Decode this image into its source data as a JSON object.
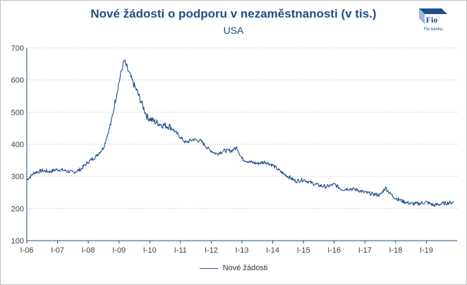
{
  "title": "Nové žádosti o podporu v nezaměstnanosti (v tis.)",
  "subtitle": "USA",
  "logo": {
    "text": "Fio",
    "caption": "Fio banka"
  },
  "colors": {
    "line": "#1f4e8c",
    "title": "#1f4e8c",
    "grid": "#bfbfbf",
    "axis": "#1f4e8c"
  },
  "chart_data": {
    "type": "line",
    "title": "Nové žádosti o podporu v nezaměstnanosti (v tis.)",
    "subtitle": "USA",
    "x_axis": {
      "type": "date",
      "range": [
        "2006-01",
        "2019-12"
      ]
    },
    "xticks": [
      "I-06",
      "I-07",
      "I-08",
      "I-09",
      "I-10",
      "I-11",
      "I-12",
      "I-13",
      "I-14",
      "I-15",
      "I-16",
      "I-17",
      "I-18",
      "I-19"
    ],
    "ylim": [
      100,
      700
    ],
    "yticks": [
      100,
      200,
      300,
      400,
      500,
      600,
      700
    ],
    "grid": {
      "horizontal": true,
      "style": "dotted"
    },
    "legend": {
      "position": "bottom"
    },
    "series": [
      {
        "name": "Nové žádosti",
        "points": [
          [
            "2006-01",
            290
          ],
          [
            "2006-04",
            312
          ],
          [
            "2006-07",
            318
          ],
          [
            "2006-10",
            315
          ],
          [
            "2007-01",
            322
          ],
          [
            "2007-04",
            318
          ],
          [
            "2007-07",
            312
          ],
          [
            "2007-10",
            322
          ],
          [
            "2008-01",
            345
          ],
          [
            "2008-04",
            362
          ],
          [
            "2008-07",
            390
          ],
          [
            "2008-10",
            470
          ],
          [
            "2008-12",
            555
          ],
          [
            "2009-02",
            630
          ],
          [
            "2009-03",
            660
          ],
          [
            "2009-04",
            640
          ],
          [
            "2009-06",
            600
          ],
          [
            "2009-08",
            565
          ],
          [
            "2009-10",
            525
          ],
          [
            "2009-12",
            485
          ],
          [
            "2010-03",
            470
          ],
          [
            "2010-06",
            460
          ],
          [
            "2010-09",
            455
          ],
          [
            "2010-12",
            430
          ],
          [
            "2011-03",
            405
          ],
          [
            "2011-06",
            415
          ],
          [
            "2011-09",
            410
          ],
          [
            "2011-12",
            385
          ],
          [
            "2012-03",
            370
          ],
          [
            "2012-06",
            380
          ],
          [
            "2012-09",
            380
          ],
          [
            "2012-11",
            390
          ],
          [
            "2013-01",
            355
          ],
          [
            "2013-04",
            345
          ],
          [
            "2013-07",
            340
          ],
          [
            "2013-10",
            345
          ],
          [
            "2014-01",
            335
          ],
          [
            "2014-04",
            315
          ],
          [
            "2014-07",
            300
          ],
          [
            "2014-10",
            285
          ],
          [
            "2015-01",
            290
          ],
          [
            "2015-04",
            280
          ],
          [
            "2015-07",
            272
          ],
          [
            "2015-10",
            268
          ],
          [
            "2016-01",
            275
          ],
          [
            "2016-04",
            260
          ],
          [
            "2016-07",
            262
          ],
          [
            "2016-10",
            258
          ],
          [
            "2017-01",
            250
          ],
          [
            "2017-04",
            245
          ],
          [
            "2017-07",
            242
          ],
          [
            "2017-09",
            265
          ],
          [
            "2017-11",
            245
          ],
          [
            "2018-01",
            232
          ],
          [
            "2018-04",
            222
          ],
          [
            "2018-07",
            215
          ],
          [
            "2018-10",
            215
          ],
          [
            "2019-01",
            220
          ],
          [
            "2019-04",
            210
          ],
          [
            "2019-07",
            215
          ],
          [
            "2019-10",
            218
          ],
          [
            "2019-12",
            220
          ]
        ]
      }
    ]
  }
}
